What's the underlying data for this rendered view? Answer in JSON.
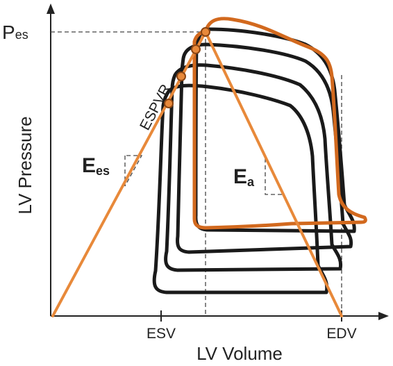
{
  "diagram": {
    "y_axis_label": "LV Pressure",
    "x_axis_label": "LV Volume",
    "x_ticks": [
      "ESV",
      "EDV"
    ],
    "pes": {
      "main": "P",
      "sub": "es"
    },
    "espvr_label": "ESPVR",
    "ees": {
      "main": "E",
      "sub": "es"
    },
    "ea": {
      "main": "E",
      "sub": "a"
    },
    "colors": {
      "highlight": "#D2691E",
      "line": "#E8893A",
      "loops": "#1a1a1a",
      "axis": "#222222",
      "dashed": "#444444",
      "marker_fill": "#E8893A",
      "marker_stroke": "#8B4513"
    }
  }
}
